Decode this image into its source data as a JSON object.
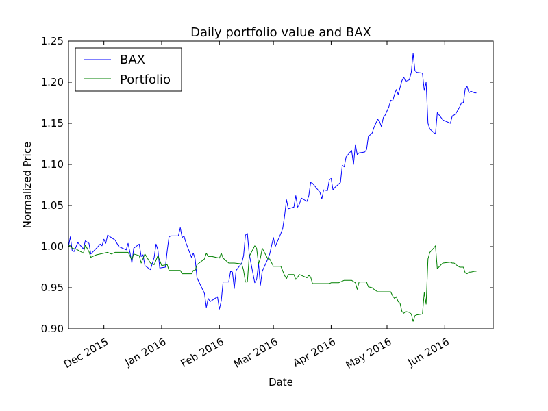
{
  "chart_data": {
    "type": "line",
    "title": "Daily portfolio value and BAX",
    "xlabel": "Date",
    "ylabel": "Normalized Price",
    "xlim": [
      "2015-11-12",
      "2016-06-27"
    ],
    "ylim": [
      0.9,
      1.25
    ],
    "x_ticks": [
      "2015-12-01",
      "2016-01-01",
      "2016-02-01",
      "2016-03-01",
      "2016-04-01",
      "2016-05-01",
      "2016-06-01"
    ],
    "x_tick_labels": [
      "Dec 2015",
      "Jan 2016",
      "Feb 2016",
      "Mar 2016",
      "Apr 2016",
      "May 2016",
      "Jun 2016"
    ],
    "y_ticks": [
      0.9,
      0.95,
      1.0,
      1.05,
      1.1,
      1.15,
      1.2,
      1.25
    ],
    "y_tick_labels": [
      "0.90",
      "0.95",
      "1.00",
      "1.05",
      "1.10",
      "1.15",
      "1.20",
      "1.25"
    ],
    "grid": false,
    "legend_position": "top-left",
    "series": [
      {
        "name": "BAX",
        "color": "#0000ff",
        "points": [
          [
            "2015-11-12",
            1.0
          ],
          [
            "2015-11-13",
            1.012
          ],
          [
            "2015-11-14",
            0.995
          ],
          [
            "2015-11-15",
            0.994
          ],
          [
            "2015-11-17",
            1.005
          ],
          [
            "2015-11-20",
            0.997
          ],
          [
            "2015-11-21",
            1.007
          ],
          [
            "2015-11-23",
            1.004
          ],
          [
            "2015-11-24",
            0.991
          ],
          [
            "2015-11-27",
            0.998
          ],
          [
            "2015-11-29",
            1.003
          ],
          [
            "2015-11-30",
            1.001
          ],
          [
            "2015-12-01",
            1.009
          ],
          [
            "2015-12-02",
            1.004
          ],
          [
            "2015-12-03",
            1.014
          ],
          [
            "2015-12-05",
            1.011
          ],
          [
            "2015-12-07",
            1.008
          ],
          [
            "2015-12-09",
            1.0
          ],
          [
            "2015-12-12",
            0.997
          ],
          [
            "2015-12-13",
            0.996
          ],
          [
            "2015-12-14",
            1.004
          ],
          [
            "2015-12-15",
            0.993
          ],
          [
            "2015-12-16",
            0.98
          ],
          [
            "2015-12-17",
            0.998
          ],
          [
            "2015-12-20",
            1.003
          ],
          [
            "2015-12-21",
            0.988
          ],
          [
            "2015-12-22",
            0.99
          ],
          [
            "2015-12-23",
            0.977
          ],
          [
            "2015-12-26",
            0.972
          ],
          [
            "2015-12-28",
            0.987
          ],
          [
            "2015-12-29",
            1.003
          ],
          [
            "2015-12-30",
            0.996
          ],
          [
            "2015-12-31",
            0.974
          ],
          [
            "2016-01-03",
            0.975
          ],
          [
            "2016-01-04",
            0.995
          ],
          [
            "2016-01-05",
            1.012
          ],
          [
            "2016-01-06",
            1.013
          ],
          [
            "2016-01-09",
            1.013
          ],
          [
            "2016-01-10",
            1.013
          ],
          [
            "2016-01-11",
            1.023
          ],
          [
            "2016-01-12",
            1.011
          ],
          [
            "2016-01-13",
            1.013
          ],
          [
            "2016-01-14",
            1.005
          ],
          [
            "2016-01-17",
            0.987
          ],
          [
            "2016-01-18",
            0.992
          ],
          [
            "2016-01-19",
            0.985
          ],
          [
            "2016-01-20",
            0.962
          ],
          [
            "2016-01-24",
            0.943
          ],
          [
            "2016-01-25",
            0.926
          ],
          [
            "2016-01-26",
            0.937
          ],
          [
            "2016-01-27",
            0.933
          ],
          [
            "2016-01-31",
            0.939
          ],
          [
            "2016-02-01",
            0.924
          ],
          [
            "2016-02-02",
            0.934
          ],
          [
            "2016-02-03",
            0.957
          ],
          [
            "2016-02-06",
            0.957
          ],
          [
            "2016-02-07",
            0.97
          ],
          [
            "2016-02-08",
            0.969
          ],
          [
            "2016-02-09",
            0.949
          ],
          [
            "2016-02-10",
            0.971
          ],
          [
            "2016-02-13",
            0.98
          ],
          [
            "2016-02-14",
            0.989
          ],
          [
            "2016-02-15",
            1.014
          ],
          [
            "2016-02-16",
            1.016
          ],
          [
            "2016-02-17",
            0.991
          ],
          [
            "2016-02-20",
            0.956
          ],
          [
            "2016-02-21",
            0.96
          ],
          [
            "2016-02-22",
            0.979
          ],
          [
            "2016-02-23",
            0.953
          ],
          [
            "2016-02-24",
            0.97
          ],
          [
            "2016-02-27",
            0.985
          ],
          [
            "2016-02-28",
            0.991
          ],
          [
            "2016-03-01",
            1.011
          ],
          [
            "2016-03-02",
            1.0
          ],
          [
            "2016-03-05",
            1.016
          ],
          [
            "2016-03-06",
            1.022
          ],
          [
            "2016-03-07",
            1.037
          ],
          [
            "2016-03-08",
            1.057
          ],
          [
            "2016-03-09",
            1.046
          ],
          [
            "2016-03-12",
            1.048
          ],
          [
            "2016-03-13",
            1.062
          ],
          [
            "2016-03-14",
            1.048
          ],
          [
            "2016-03-15",
            1.052
          ],
          [
            "2016-03-16",
            1.059
          ],
          [
            "2016-03-19",
            1.055
          ],
          [
            "2016-03-20",
            1.062
          ],
          [
            "2016-03-21",
            1.078
          ],
          [
            "2016-03-22",
            1.077
          ],
          [
            "2016-03-26",
            1.066
          ],
          [
            "2016-03-27",
            1.058
          ],
          [
            "2016-03-28",
            1.069
          ],
          [
            "2016-03-30",
            1.068
          ],
          [
            "2016-03-31",
            1.081
          ],
          [
            "2016-04-01",
            1.083
          ],
          [
            "2016-04-02",
            1.069
          ],
          [
            "2016-04-03",
            1.072
          ],
          [
            "2016-04-06",
            1.078
          ],
          [
            "2016-04-07",
            1.099
          ],
          [
            "2016-04-08",
            1.097
          ],
          [
            "2016-04-09",
            1.109
          ],
          [
            "2016-04-12",
            1.117
          ],
          [
            "2016-04-13",
            1.1
          ],
          [
            "2016-04-14",
            1.124
          ],
          [
            "2016-04-15",
            1.112
          ],
          [
            "2016-04-16",
            1.114
          ],
          [
            "2016-04-19",
            1.115
          ],
          [
            "2016-04-20",
            1.118
          ],
          [
            "2016-04-21",
            1.134
          ],
          [
            "2016-04-23",
            1.138
          ],
          [
            "2016-04-24",
            1.145
          ],
          [
            "2016-04-26",
            1.155
          ],
          [
            "2016-04-27",
            1.152
          ],
          [
            "2016-04-28",
            1.146
          ],
          [
            "2016-04-29",
            1.157
          ],
          [
            "2016-04-30",
            1.16
          ],
          [
            "2016-05-02",
            1.17
          ],
          [
            "2016-05-03",
            1.178
          ],
          [
            "2016-05-04",
            1.177
          ],
          [
            "2016-05-05",
            1.185
          ],
          [
            "2016-05-06",
            1.191
          ],
          [
            "2016-05-07",
            1.185
          ],
          [
            "2016-05-09",
            1.202
          ],
          [
            "2016-05-10",
            1.206
          ],
          [
            "2016-05-11",
            1.201
          ],
          [
            "2016-05-13",
            1.203
          ],
          [
            "2016-05-14",
            1.212
          ],
          [
            "2016-05-15",
            1.235
          ],
          [
            "2016-05-16",
            1.214
          ],
          [
            "2016-05-17",
            1.212
          ],
          [
            "2016-05-20",
            1.211
          ],
          [
            "2016-05-21",
            1.19
          ],
          [
            "2016-05-22",
            1.2
          ],
          [
            "2016-05-23",
            1.15
          ],
          [
            "2016-05-24",
            1.143
          ],
          [
            "2016-05-26",
            1.139
          ],
          [
            "2016-05-27",
            1.137
          ],
          [
            "2016-05-28",
            1.163
          ],
          [
            "2016-05-30",
            1.157
          ],
          [
            "2016-05-31",
            1.154
          ],
          [
            "2016-06-04",
            1.15
          ],
          [
            "2016-06-05",
            1.159
          ],
          [
            "2016-06-06",
            1.16
          ],
          [
            "2016-06-07",
            1.162
          ],
          [
            "2016-06-09",
            1.17
          ],
          [
            "2016-06-10",
            1.175
          ],
          [
            "2016-06-11",
            1.175
          ],
          [
            "2016-06-12",
            1.192
          ],
          [
            "2016-06-13",
            1.195
          ],
          [
            "2016-06-14",
            1.187
          ],
          [
            "2016-06-15",
            1.189
          ],
          [
            "2016-06-17",
            1.187
          ],
          [
            "2016-06-18",
            1.187
          ]
        ]
      },
      {
        "name": "Portfolio",
        "color": "#008000",
        "points": [
          [
            "2015-11-12",
            1.0
          ],
          [
            "2015-11-13",
            1.002
          ],
          [
            "2015-11-14",
            0.998
          ],
          [
            "2015-11-16",
            0.997
          ],
          [
            "2015-11-20",
            0.992
          ],
          [
            "2015-11-21",
            1.002
          ],
          [
            "2015-11-23",
            0.994
          ],
          [
            "2015-11-24",
            0.987
          ],
          [
            "2015-11-27",
            0.99
          ],
          [
            "2015-12-01",
            0.992
          ],
          [
            "2015-12-03",
            0.993
          ],
          [
            "2015-12-05",
            0.991
          ],
          [
            "2015-12-07",
            0.993
          ],
          [
            "2015-12-10",
            0.993
          ],
          [
            "2015-12-14",
            0.993
          ],
          [
            "2015-12-16",
            0.984
          ],
          [
            "2015-12-17",
            0.991
          ],
          [
            "2015-12-20",
            0.989
          ],
          [
            "2015-12-21",
            0.98
          ],
          [
            "2015-12-23",
            0.991
          ],
          [
            "2015-12-26",
            0.98
          ],
          [
            "2015-12-28",
            0.978
          ],
          [
            "2015-12-30",
            0.989
          ],
          [
            "2016-01-01",
            0.977
          ],
          [
            "2016-01-04",
            0.978
          ],
          [
            "2016-01-05",
            0.971
          ],
          [
            "2016-01-11",
            0.971
          ],
          [
            "2016-01-12",
            0.967
          ],
          [
            "2016-01-13",
            0.967
          ],
          [
            "2016-01-17",
            0.967
          ],
          [
            "2016-01-18",
            0.971
          ],
          [
            "2016-01-19",
            0.971
          ],
          [
            "2016-01-20",
            0.978
          ],
          [
            "2016-01-24",
            0.985
          ],
          [
            "2016-01-25",
            0.992
          ],
          [
            "2016-01-26",
            0.988
          ],
          [
            "2016-01-28",
            0.988
          ],
          [
            "2016-02-01",
            0.986
          ],
          [
            "2016-02-02",
            0.992
          ],
          [
            "2016-02-03",
            0.986
          ],
          [
            "2016-02-06",
            0.98
          ],
          [
            "2016-02-09",
            0.98
          ],
          [
            "2016-02-13",
            0.979
          ],
          [
            "2016-02-14",
            0.971
          ],
          [
            "2016-02-15",
            0.957
          ],
          [
            "2016-02-16",
            0.957
          ],
          [
            "2016-02-17",
            0.988
          ],
          [
            "2016-02-20",
            1.001
          ],
          [
            "2016-02-21",
            0.998
          ],
          [
            "2016-02-22",
            0.979
          ],
          [
            "2016-02-23",
            0.986
          ],
          [
            "2016-02-24",
            0.998
          ],
          [
            "2016-02-27",
            0.985
          ],
          [
            "2016-02-28",
            0.985
          ],
          [
            "2016-03-01",
            0.976
          ],
          [
            "2016-03-05",
            0.976
          ],
          [
            "2016-03-07",
            0.965
          ],
          [
            "2016-03-08",
            0.961
          ],
          [
            "2016-03-09",
            0.966
          ],
          [
            "2016-03-12",
            0.966
          ],
          [
            "2016-03-13",
            0.96
          ],
          [
            "2016-03-14",
            0.963
          ],
          [
            "2016-03-15",
            0.966
          ],
          [
            "2016-03-19",
            0.962
          ],
          [
            "2016-03-20",
            0.965
          ],
          [
            "2016-03-21",
            0.963
          ],
          [
            "2016-03-22",
            0.955
          ],
          [
            "2016-03-31",
            0.955
          ],
          [
            "2016-04-01",
            0.956
          ],
          [
            "2016-04-05",
            0.956
          ],
          [
            "2016-04-08",
            0.959
          ],
          [
            "2016-04-12",
            0.959
          ],
          [
            "2016-04-14",
            0.956
          ],
          [
            "2016-04-15",
            0.948
          ],
          [
            "2016-04-16",
            0.957
          ],
          [
            "2016-04-19",
            0.957
          ],
          [
            "2016-04-20",
            0.957
          ],
          [
            "2016-04-21",
            0.951
          ],
          [
            "2016-04-23",
            0.95
          ],
          [
            "2016-04-24",
            0.948
          ],
          [
            "2016-04-26",
            0.945
          ],
          [
            "2016-04-28",
            0.945
          ],
          [
            "2016-05-02",
            0.945
          ],
          [
            "2016-05-03",
            0.945
          ],
          [
            "2016-05-04",
            0.94
          ],
          [
            "2016-05-05",
            0.937
          ],
          [
            "2016-05-06",
            0.939
          ],
          [
            "2016-05-07",
            0.933
          ],
          [
            "2016-05-08",
            0.931
          ],
          [
            "2016-05-09",
            0.921
          ],
          [
            "2016-05-10",
            0.919
          ],
          [
            "2016-05-11",
            0.921
          ],
          [
            "2016-05-13",
            0.92
          ],
          [
            "2016-05-14",
            0.918
          ],
          [
            "2016-05-15",
            0.909
          ],
          [
            "2016-05-16",
            0.916
          ],
          [
            "2016-05-17",
            0.917
          ],
          [
            "2016-05-20",
            0.918
          ],
          [
            "2016-05-21",
            0.944
          ],
          [
            "2016-05-22",
            0.93
          ],
          [
            "2016-05-23",
            0.985
          ],
          [
            "2016-05-24",
            0.993
          ],
          [
            "2016-05-26",
            0.998
          ],
          [
            "2016-05-27",
            1.001
          ],
          [
            "2016-05-28",
            0.973
          ],
          [
            "2016-05-30",
            0.978
          ],
          [
            "2016-05-31",
            0.98
          ],
          [
            "2016-06-04",
            0.981
          ],
          [
            "2016-06-05",
            0.98
          ],
          [
            "2016-06-06",
            0.98
          ],
          [
            "2016-06-07",
            0.978
          ],
          [
            "2016-06-09",
            0.975
          ],
          [
            "2016-06-10",
            0.975
          ],
          [
            "2016-06-11",
            0.975
          ],
          [
            "2016-06-12",
            0.968
          ],
          [
            "2016-06-13",
            0.967
          ],
          [
            "2016-06-14",
            0.969
          ],
          [
            "2016-06-15",
            0.969
          ],
          [
            "2016-06-17",
            0.97
          ],
          [
            "2016-06-18",
            0.97
          ]
        ]
      }
    ]
  }
}
